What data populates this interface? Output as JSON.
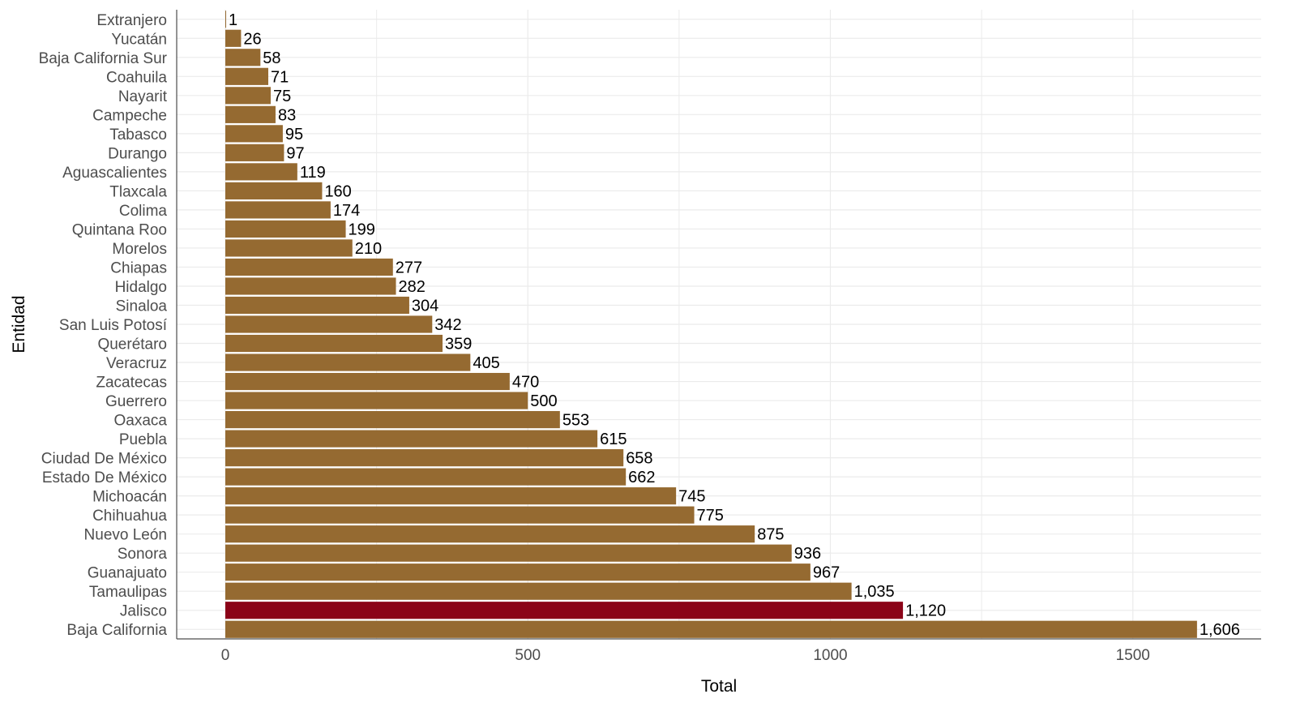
{
  "chart_data": {
    "type": "bar",
    "orientation": "horizontal",
    "xlabel": "Total",
    "ylabel": "Entidad",
    "xlim": [
      0,
      1700
    ],
    "xticks": [
      0,
      500,
      1000,
      1500
    ],
    "grid": true,
    "legend": "none",
    "colors": {
      "default": "#956a31",
      "highlight": "#8b0318",
      "grid": "#ebebeb",
      "axis": "#4d4d4d"
    },
    "highlight": "Jalisco",
    "categories": [
      "Extranjero",
      "Yucatán",
      "Baja California Sur",
      "Coahuila",
      "Nayarit",
      "Campeche",
      "Tabasco",
      "Durango",
      "Aguascalientes",
      "Tlaxcala",
      "Colima",
      "Quintana Roo",
      "Morelos",
      "Chiapas",
      "Hidalgo",
      "Sinaloa",
      "San Luis Potosí",
      "Querétaro",
      "Veracruz",
      "Zacatecas",
      "Guerrero",
      "Oaxaca",
      "Puebla",
      "Ciudad De México",
      "Estado De México",
      "Michoacán",
      "Chihuahua",
      "Nuevo León",
      "Sonora",
      "Guanajuato",
      "Tamaulipas",
      "Jalisco",
      "Baja California"
    ],
    "values": [
      1,
      26,
      58,
      71,
      75,
      83,
      95,
      97,
      119,
      160,
      174,
      199,
      210,
      277,
      282,
      304,
      342,
      359,
      405,
      470,
      500,
      553,
      615,
      658,
      662,
      745,
      775,
      875,
      936,
      967,
      1035,
      1120,
      1606
    ],
    "value_labels": [
      "1",
      "26",
      "58",
      "71",
      "75",
      "83",
      "95",
      "97",
      "119",
      "160",
      "174",
      "199",
      "210",
      "277",
      "282",
      "304",
      "342",
      "359",
      "405",
      "470",
      "500",
      "553",
      "615",
      "658",
      "662",
      "745",
      "775",
      "875",
      "936",
      "967",
      "1,035",
      "1,120",
      "1,606"
    ]
  }
}
